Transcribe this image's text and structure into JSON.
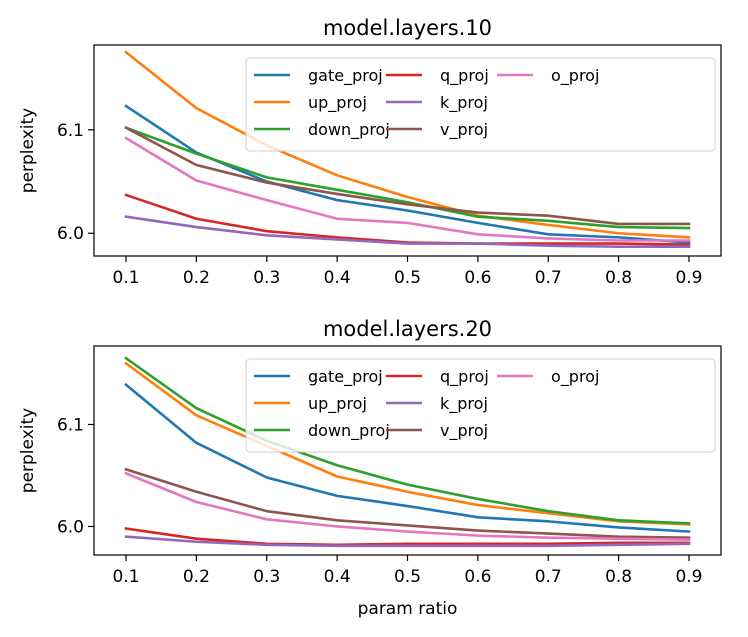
{
  "chart_data": [
    {
      "type": "line",
      "title": "model.layers.10",
      "xlabel": "",
      "ylabel": "perplexity",
      "x": [
        0.1,
        0.2,
        0.3,
        0.4,
        0.5,
        0.6,
        0.7,
        0.8,
        0.9
      ],
      "xticks": [
        "0.1",
        "0.2",
        "0.3",
        "0.4",
        "0.5",
        "0.6",
        "0.7",
        "0.8",
        "0.9"
      ],
      "yticks": [
        {
          "value": 6.0,
          "label": "6.0"
        },
        {
          "value": 6.1,
          "label": "6.1"
        }
      ],
      "xlim": [
        0.0545,
        0.9455
      ],
      "ylim": [
        5.978,
        6.182
      ],
      "legend": {
        "placement": "upper-right",
        "columns": 3
      },
      "series": [
        {
          "name": "gate_proj",
          "color": "#1f77b4",
          "values": [
            6.123,
            6.078,
            6.05,
            6.032,
            6.022,
            6.01,
            5.999,
            5.996,
            5.991
          ]
        },
        {
          "name": "up_proj",
          "color": "#ff7f0e",
          "values": [
            6.175,
            6.121,
            6.085,
            6.056,
            6.035,
            6.017,
            6.008,
            6.0,
            5.996
          ]
        },
        {
          "name": "down_proj",
          "color": "#2ca02c",
          "values": [
            6.102,
            6.077,
            6.054,
            6.042,
            6.03,
            6.016,
            6.012,
            6.006,
            6.005
          ]
        },
        {
          "name": "q_proj",
          "color": "#d62728",
          "values": [
            6.037,
            6.014,
            6.002,
            5.996,
            5.991,
            5.99,
            5.99,
            5.99,
            5.989
          ]
        },
        {
          "name": "k_proj",
          "color": "#9467bd",
          "values": [
            6.016,
            6.006,
            5.998,
            5.994,
            5.99,
            5.99,
            5.988,
            5.987,
            5.987
          ]
        },
        {
          "name": "v_proj",
          "color": "#8c564b",
          "values": [
            6.102,
            6.066,
            6.049,
            6.038,
            6.028,
            6.02,
            6.017,
            6.009,
            6.009
          ]
        },
        {
          "name": "o_proj",
          "color": "#e377c2",
          "values": [
            6.092,
            6.051,
            6.032,
            6.014,
            6.01,
            5.999,
            5.995,
            5.993,
            5.993
          ]
        }
      ]
    },
    {
      "type": "line",
      "title": "model.layers.20",
      "xlabel": "param ratio",
      "ylabel": "perplexity",
      "x": [
        0.1,
        0.2,
        0.3,
        0.4,
        0.5,
        0.6,
        0.7,
        0.8,
        0.9
      ],
      "xticks": [
        "0.1",
        "0.2",
        "0.3",
        "0.4",
        "0.5",
        "0.6",
        "0.7",
        "0.8",
        "0.9"
      ],
      "yticks": [
        {
          "value": 6.0,
          "label": "6.0"
        },
        {
          "value": 6.1,
          "label": "6.1"
        }
      ],
      "xlim": [
        0.0545,
        0.9455
      ],
      "ylim": [
        5.972,
        6.177
      ],
      "legend": {
        "placement": "upper-right",
        "columns": 3
      },
      "series": [
        {
          "name": "gate_proj",
          "color": "#1f77b4",
          "values": [
            6.139,
            6.082,
            6.048,
            6.03,
            6.02,
            6.009,
            6.005,
            5.999,
            5.995
          ]
        },
        {
          "name": "up_proj",
          "color": "#ff7f0e",
          "values": [
            6.16,
            6.109,
            6.079,
            6.049,
            6.034,
            6.021,
            6.013,
            6.005,
            6.002
          ]
        },
        {
          "name": "down_proj",
          "color": "#2ca02c",
          "values": [
            6.165,
            6.116,
            6.084,
            6.06,
            6.041,
            6.027,
            6.015,
            6.006,
            6.003
          ]
        },
        {
          "name": "q_proj",
          "color": "#d62728",
          "values": [
            5.998,
            5.988,
            5.983,
            5.982,
            5.983,
            5.983,
            5.983,
            5.984,
            5.984
          ]
        },
        {
          "name": "k_proj",
          "color": "#9467bd",
          "values": [
            5.99,
            5.985,
            5.982,
            5.981,
            5.981,
            5.981,
            5.981,
            5.982,
            5.983
          ]
        },
        {
          "name": "v_proj",
          "color": "#8c564b",
          "values": [
            6.056,
            6.034,
            6.015,
            6.006,
            6.001,
            5.996,
            5.993,
            5.99,
            5.989
          ]
        },
        {
          "name": "o_proj",
          "color": "#e377c2",
          "values": [
            6.052,
            6.024,
            6.007,
            6.0,
            5.995,
            5.991,
            5.989,
            5.988,
            5.987
          ]
        }
      ]
    }
  ]
}
